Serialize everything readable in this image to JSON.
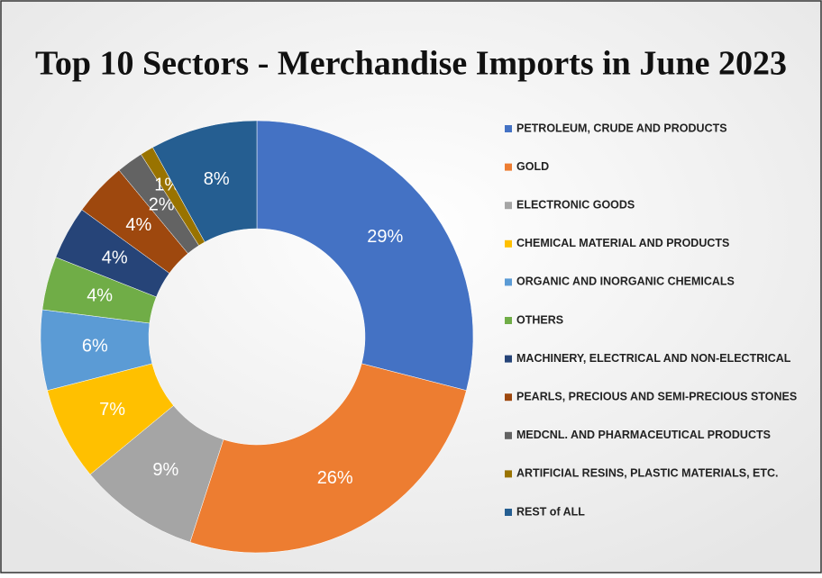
{
  "chart_data": {
    "type": "donut",
    "title": "Top 10 Sectors - Merchandise Imports in June 2023",
    "categories": [
      "PETROLEUM, CRUDE AND PRODUCTS",
      "GOLD",
      "ELECTRONIC GOODS",
      "CHEMICAL MATERIAL AND PRODUCTS",
      "ORGANIC AND INORGANIC CHEMICALS",
      "OTHERS",
      "MACHINERY, ELECTRICAL AND NON-ELECTRICAL",
      "PEARLS, PRECIOUS AND SEMI-PRECIOUS STONES",
      "MEDCNL. AND PHARMACEUTICAL PRODUCTS",
      "ARTIFICIAL RESINS, PLASTIC MATERIALS, ETC.",
      "REST of ALL"
    ],
    "values": [
      29,
      26,
      9,
      7,
      6,
      4,
      4,
      4,
      2,
      1,
      8
    ],
    "value_labels": [
      "29%",
      "26%",
      "9%",
      "7%",
      "6%",
      "4%",
      "4%",
      "4%",
      "2%",
      "1%",
      "8%"
    ],
    "colors": [
      "#4472c4",
      "#ed7d31",
      "#a5a5a5",
      "#ffc000",
      "#5b9bd5",
      "#70ad47",
      "#264478",
      "#9e480e",
      "#636363",
      "#997300",
      "#255e91"
    ],
    "legend": "right"
  }
}
